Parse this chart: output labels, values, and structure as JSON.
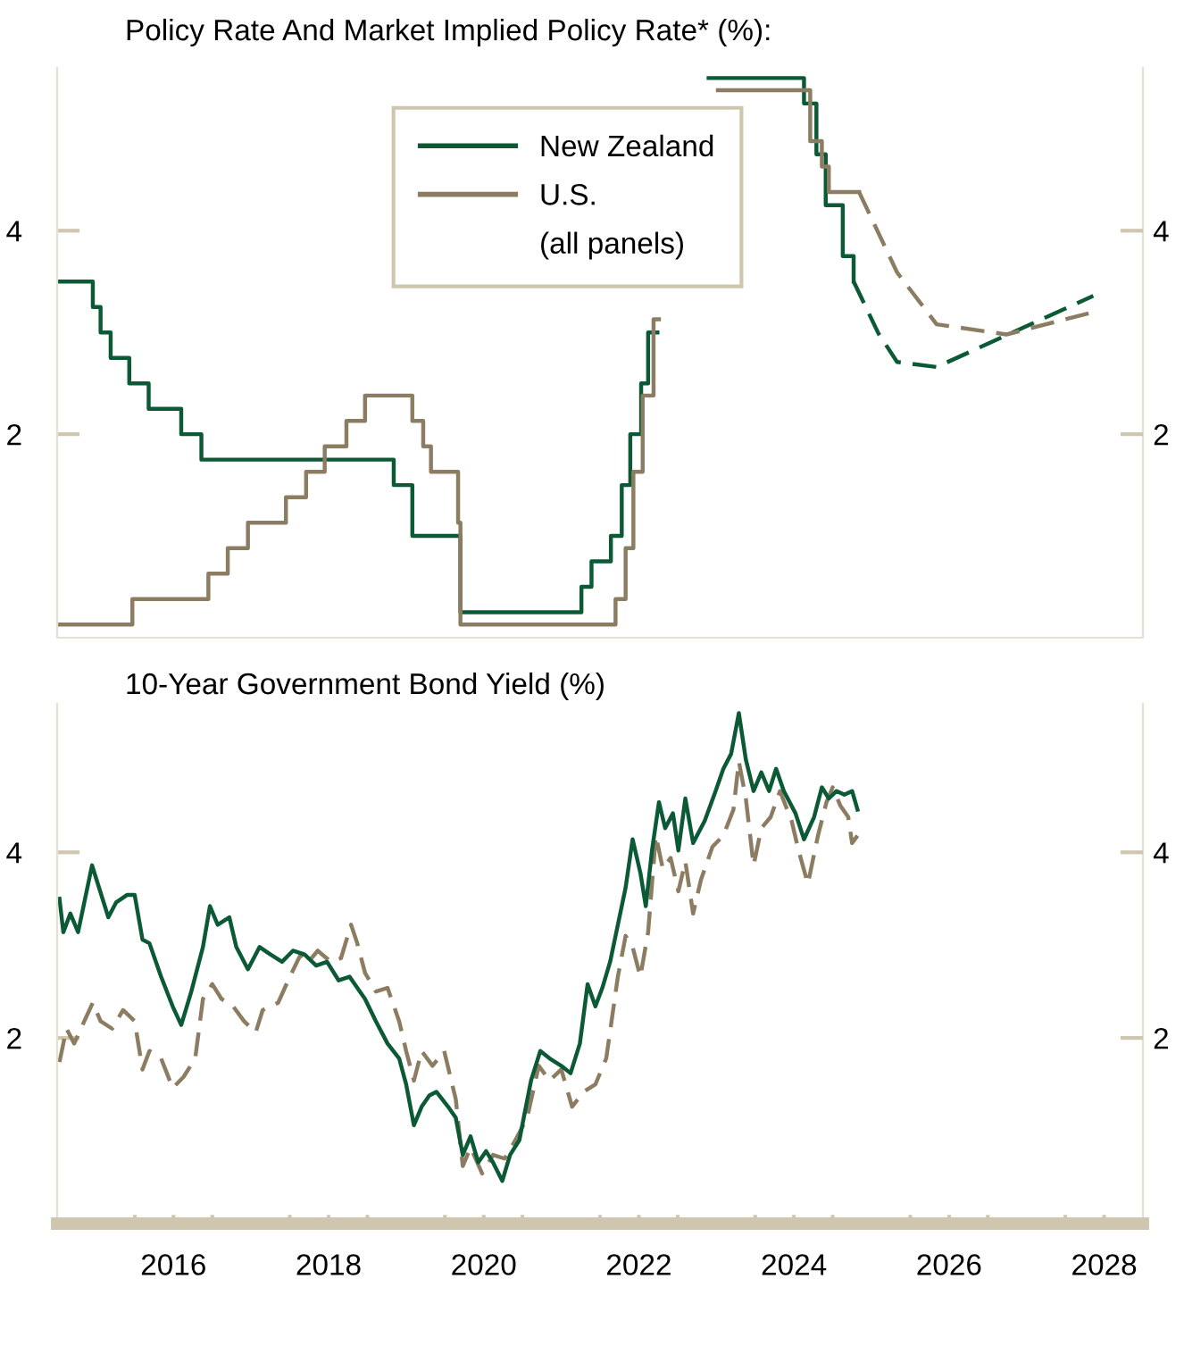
{
  "chart_data": [
    {
      "type": "step",
      "title": "Policy Rate And Market Implied Policy Rate* (%):",
      "legend": "top",
      "legend_title": "(all panels)",
      "tick_labels": "y",
      "xlim": [
        2015,
        2029
      ],
      "ylim": [
        0,
        5.6
      ],
      "yticks": [
        2,
        4
      ],
      "y2lim": [
        0,
        5.6
      ],
      "y2ticks": [
        2,
        4
      ],
      "series": [
        {
          "name": "New Zealand",
          "color": "#0b5a35",
          "line_style": "solid",
          "x": [
            2015.03,
            2015.46,
            2015.56,
            2015.69,
            2015.93,
            2016.18,
            2016.6,
            2016.86,
            2019.34,
            2019.58,
            2020.2,
            2021.76,
            2021.89,
            2022.14,
            2022.28,
            2022.39,
            2022.53,
            2022.62,
            2022.74,
            2023.4,
            2024.63,
            2024.79,
            2024.91,
            2025.13,
            2025.27
          ],
          "values": [
            3.5,
            3.25,
            3.0,
            2.75,
            2.5,
            2.25,
            2.0,
            1.75,
            1.5,
            1.0,
            0.25,
            0.5,
            0.75,
            1.0,
            1.5,
            2.0,
            2.5,
            3.0,
            null,
            5.5,
            5.25,
            4.75,
            4.25,
            3.75,
            3.5
          ]
        },
        {
          "name": "U.S.",
          "color": "#8c7d62",
          "line_style": "solid",
          "x": [
            2015.03,
            2015.97,
            2016.95,
            2017.2,
            2017.46,
            2017.95,
            2018.21,
            2018.45,
            2018.73,
            2018.97,
            2019.58,
            2019.72,
            2019.82,
            2020.17,
            2020.2,
            2022.2,
            2022.33,
            2022.43,
            2022.55,
            2022.69,
            2022.76,
            2023.52,
            2024.71,
            2024.86,
            2024.95,
            2025.34
          ],
          "values": [
            0.13,
            0.38,
            0.63,
            0.88,
            1.13,
            1.38,
            1.63,
            1.88,
            2.13,
            2.38,
            2.13,
            1.88,
            1.63,
            1.13,
            0.13,
            0.38,
            0.88,
            1.63,
            2.38,
            3.13,
            null,
            5.38,
            4.88,
            4.63,
            4.38,
            4.38
          ]
        },
        {
          "color": "#0b5a35",
          "type": "line",
          "line_style": "dashed",
          "x": [
            2025.27,
            2025.59,
            2025.83,
            2026.34,
            2028.36
          ],
          "values": [
            3.5,
            2.99,
            2.71,
            2.66,
            3.36
          ]
        },
        {
          "color": "#8c7d62",
          "type": "line",
          "line_style": "dashed",
          "x": [
            2025.34,
            2025.83,
            2026.34,
            2027.24,
            2028.36
          ],
          "values": [
            4.38,
            3.59,
            3.08,
            2.98,
            3.2
          ]
        }
      ]
    },
    {
      "type": "line",
      "title": "10-Year Government Bond Yield (%)",
      "xlim": [
        2015,
        2029
      ],
      "ylim": [
        0,
        5.6
      ],
      "yticks": [
        2,
        4
      ],
      "y2lim": [
        0,
        5.6
      ],
      "y2ticks": [
        2,
        4
      ],
      "xticks": [
        {
          "value": 2016,
          "label": null
        },
        {
          "value": 2017,
          "label": null
        },
        {
          "value": 2018,
          "label": null
        },
        {
          "value": 2019,
          "label": null
        },
        {
          "value": 2020,
          "label": null
        },
        {
          "value": 2021,
          "label": null
        },
        {
          "value": 2022,
          "label": null
        },
        {
          "value": 2023,
          "label": null
        },
        {
          "value": 2024,
          "label": null
        },
        {
          "value": 2025,
          "label": null
        },
        {
          "value": 2026,
          "label": null
        },
        {
          "value": 2027,
          "label": null
        },
        {
          "value": 2028,
          "label": null
        },
        {
          "value": 2016.5,
          "label": "2016"
        },
        {
          "value": 2018.5,
          "label": "2018"
        },
        {
          "value": 2020.5,
          "label": "2020"
        },
        {
          "value": 2022.5,
          "label": "2022"
        },
        {
          "value": 2024.5,
          "label": "2024"
        },
        {
          "value": 2026.5,
          "label": "2026"
        },
        {
          "value": 2028.5,
          "label": "2028"
        }
      ],
      "series": [
        {
          "color": "#8c7d62",
          "line_style": "dashed",
          "x": [
            2015.03,
            2015.12,
            2015.22,
            2015.35,
            2015.46,
            2015.56,
            2015.71,
            2015.85,
            2016.0,
            2016.1,
            2016.19,
            2016.34,
            2016.49,
            2016.63,
            2016.78,
            2016.88,
            2017.0,
            2017.12,
            2017.27,
            2017.41,
            2017.56,
            2017.65,
            2017.85,
            2018.0,
            2018.14,
            2018.24,
            2018.36,
            2018.53,
            2018.66,
            2018.79,
            2018.87,
            2018.97,
            2019.11,
            2019.26,
            2019.41,
            2019.5,
            2019.6,
            2019.7,
            2019.84,
            2019.99,
            2020.14,
            2020.23,
            2020.33,
            2020.48,
            2020.62,
            2020.77,
            2020.91,
            2021.06,
            2021.21,
            2021.35,
            2021.5,
            2021.64,
            2021.79,
            2021.94,
            2022.08,
            2022.23,
            2022.33,
            2022.42,
            2022.52,
            2022.62,
            2022.72,
            2022.81,
            2022.91,
            2023.01,
            2023.1,
            2023.2,
            2023.3,
            2023.45,
            2023.59,
            2023.72,
            2023.79,
            2023.88,
            2023.98,
            2024.08,
            2024.2,
            2024.32,
            2024.47,
            2024.56,
            2024.68,
            2024.81,
            2024.92,
            2025.0,
            2025.1,
            2025.2,
            2025.25,
            2025.32
          ],
          "values": [
            1.74,
            2.1,
            1.94,
            2.18,
            2.38,
            2.18,
            2.1,
            2.3,
            2.18,
            1.66,
            1.86,
            1.78,
            1.46,
            1.58,
            1.78,
            2.42,
            2.58,
            2.42,
            2.34,
            2.18,
            2.06,
            2.3,
            2.38,
            2.66,
            2.9,
            2.82,
            2.94,
            2.82,
            2.86,
            3.22,
            3.02,
            2.7,
            2.5,
            2.54,
            2.18,
            1.86,
            1.54,
            1.86,
            1.7,
            1.86,
            1.34,
            0.62,
            0.82,
            0.54,
            0.74,
            0.7,
            0.9,
            1.14,
            1.7,
            1.54,
            1.66,
            1.26,
            1.42,
            1.5,
            1.78,
            2.66,
            3.1,
            2.98,
            2.66,
            3.14,
            4.18,
            3.82,
            3.94,
            3.58,
            3.9,
            3.34,
            3.7,
            4.06,
            4.18,
            4.46,
            4.98,
            4.58,
            3.86,
            4.26,
            4.38,
            4.66,
            4.34,
            4.02,
            3.66,
            4.18,
            4.54,
            4.7,
            4.5,
            4.38,
            4.1,
            4.18
          ]
        },
        {
          "color": "#0b5a35",
          "line_style": "solid",
          "x": [
            2015.03,
            2015.08,
            2015.17,
            2015.27,
            2015.45,
            2015.51,
            2015.66,
            2015.76,
            2015.9,
            2016.0,
            2016.1,
            2016.19,
            2016.34,
            2016.49,
            2016.6,
            2016.73,
            2016.88,
            2016.97,
            2017.07,
            2017.22,
            2017.31,
            2017.46,
            2017.61,
            2017.75,
            2017.9,
            2018.04,
            2018.19,
            2018.34,
            2018.48,
            2018.63,
            2018.77,
            2018.87,
            2018.97,
            2019.11,
            2019.26,
            2019.41,
            2019.5,
            2019.6,
            2019.7,
            2019.8,
            2019.89,
            2020.04,
            2020.14,
            2020.23,
            2020.33,
            2020.43,
            2020.53,
            2020.62,
            2020.74,
            2020.84,
            2020.96,
            2021.11,
            2021.23,
            2021.35,
            2021.5,
            2021.62,
            2021.74,
            2021.84,
            2021.94,
            2022.03,
            2022.13,
            2022.23,
            2022.33,
            2022.42,
            2022.52,
            2022.59,
            2022.67,
            2022.76,
            2022.84,
            2022.94,
            2023.01,
            2023.1,
            2023.2,
            2023.35,
            2023.49,
            2023.59,
            2023.69,
            2023.79,
            2023.88,
            2023.98,
            2024.08,
            2024.18,
            2024.27,
            2024.37,
            2024.52,
            2024.63,
            2024.76,
            2024.86,
            2024.95,
            2025.05,
            2025.15,
            2025.25,
            2025.32
          ],
          "values": [
            3.5,
            3.14,
            3.34,
            3.14,
            3.86,
            3.7,
            3.3,
            3.46,
            3.54,
            3.54,
            3.06,
            3.02,
            2.66,
            2.34,
            2.14,
            2.5,
            2.98,
            3.42,
            3.22,
            3.3,
            2.98,
            2.74,
            2.98,
            2.9,
            2.82,
            2.94,
            2.9,
            2.78,
            2.82,
            2.62,
            2.66,
            2.54,
            2.42,
            2.18,
            1.94,
            1.78,
            1.5,
            1.06,
            1.26,
            1.38,
            1.42,
            1.26,
            1.14,
            0.74,
            0.94,
            0.66,
            0.78,
            0.66,
            0.46,
            0.74,
            0.9,
            1.54,
            1.86,
            1.78,
            1.7,
            1.62,
            1.94,
            2.58,
            2.34,
            2.54,
            2.82,
            3.22,
            3.62,
            4.14,
            3.78,
            3.42,
            4.02,
            4.54,
            4.26,
            4.42,
            4.02,
            4.58,
            4.1,
            4.34,
            4.66,
            4.9,
            5.06,
            5.5,
            5.0,
            4.66,
            4.86,
            4.66,
            4.9,
            4.66,
            4.42,
            4.14,
            4.38,
            4.7,
            4.58,
            4.66,
            4.62,
            4.66,
            4.46
          ]
        }
      ]
    }
  ]
}
